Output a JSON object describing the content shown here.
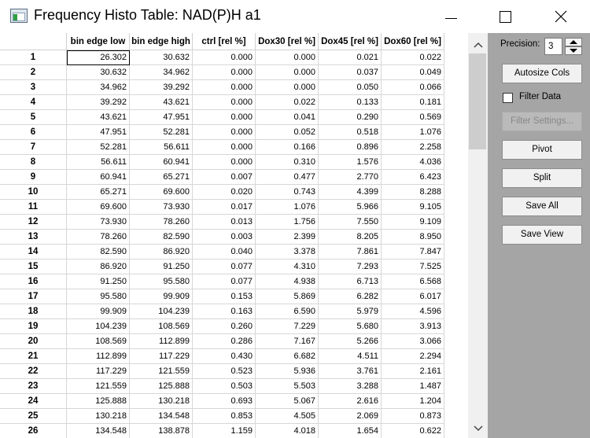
{
  "window": {
    "title": "Frequency Histo Table: NAD(P)H a1"
  },
  "table": {
    "columns": [
      "bin edge low",
      "bin edge high",
      "ctrl [rel %]",
      "Dox30 [rel %]",
      "Dox45 [rel %]",
      "Dox60 [rel %]"
    ],
    "rows": [
      {
        "id": "1",
        "cells": [
          "26.302",
          "30.632",
          "0.000",
          "0.000",
          "0.021",
          "0.022"
        ]
      },
      {
        "id": "2",
        "cells": [
          "30.632",
          "34.962",
          "0.000",
          "0.000",
          "0.037",
          "0.049"
        ]
      },
      {
        "id": "3",
        "cells": [
          "34.962",
          "39.292",
          "0.000",
          "0.000",
          "0.050",
          "0.066"
        ]
      },
      {
        "id": "4",
        "cells": [
          "39.292",
          "43.621",
          "0.000",
          "0.022",
          "0.133",
          "0.181"
        ]
      },
      {
        "id": "5",
        "cells": [
          "43.621",
          "47.951",
          "0.000",
          "0.041",
          "0.290",
          "0.569"
        ]
      },
      {
        "id": "6",
        "cells": [
          "47.951",
          "52.281",
          "0.000",
          "0.052",
          "0.518",
          "1.076"
        ]
      },
      {
        "id": "7",
        "cells": [
          "52.281",
          "56.611",
          "0.000",
          "0.166",
          "0.896",
          "2.258"
        ]
      },
      {
        "id": "8",
        "cells": [
          "56.611",
          "60.941",
          "0.000",
          "0.310",
          "1.576",
          "4.036"
        ]
      },
      {
        "id": "9",
        "cells": [
          "60.941",
          "65.271",
          "0.007",
          "0.477",
          "2.770",
          "6.423"
        ]
      },
      {
        "id": "10",
        "cells": [
          "65.271",
          "69.600",
          "0.020",
          "0.743",
          "4.399",
          "8.288"
        ]
      },
      {
        "id": "11",
        "cells": [
          "69.600",
          "73.930",
          "0.017",
          "1.076",
          "5.966",
          "9.105"
        ]
      },
      {
        "id": "12",
        "cells": [
          "73.930",
          "78.260",
          "0.013",
          "1.756",
          "7.550",
          "9.109"
        ]
      },
      {
        "id": "13",
        "cells": [
          "78.260",
          "82.590",
          "0.003",
          "2.399",
          "8.205",
          "8.950"
        ]
      },
      {
        "id": "14",
        "cells": [
          "82.590",
          "86.920",
          "0.040",
          "3.378",
          "7.861",
          "7.847"
        ]
      },
      {
        "id": "15",
        "cells": [
          "86.920",
          "91.250",
          "0.077",
          "4.310",
          "7.293",
          "7.525"
        ]
      },
      {
        "id": "16",
        "cells": [
          "91.250",
          "95.580",
          "0.077",
          "4.938",
          "6.713",
          "6.568"
        ]
      },
      {
        "id": "17",
        "cells": [
          "95.580",
          "99.909",
          "0.153",
          "5.869",
          "6.282",
          "6.017"
        ]
      },
      {
        "id": "18",
        "cells": [
          "99.909",
          "104.239",
          "0.163",
          "6.590",
          "5.979",
          "4.596"
        ]
      },
      {
        "id": "19",
        "cells": [
          "104.239",
          "108.569",
          "0.260",
          "7.229",
          "5.680",
          "3.913"
        ]
      },
      {
        "id": "20",
        "cells": [
          "108.569",
          "112.899",
          "0.286",
          "7.167",
          "5.266",
          "3.066"
        ]
      },
      {
        "id": "21",
        "cells": [
          "112.899",
          "117.229",
          "0.430",
          "6.682",
          "4.511",
          "2.294"
        ]
      },
      {
        "id": "22",
        "cells": [
          "117.229",
          "121.559",
          "0.523",
          "5.936",
          "3.761",
          "2.161"
        ]
      },
      {
        "id": "23",
        "cells": [
          "121.559",
          "125.888",
          "0.503",
          "5.503",
          "3.288",
          "1.487"
        ]
      },
      {
        "id": "24",
        "cells": [
          "125.888",
          "130.218",
          "0.693",
          "5.067",
          "2.616",
          "1.204"
        ]
      },
      {
        "id": "25",
        "cells": [
          "130.218",
          "134.548",
          "0.853",
          "4.505",
          "2.069",
          "0.873"
        ]
      },
      {
        "id": "26",
        "cells": [
          "134.548",
          "138.878",
          "1.159",
          "4.018",
          "1.654",
          "0.622"
        ]
      }
    ]
  },
  "panel": {
    "precision_label": "Precision:",
    "precision_value": "3",
    "autosize_label": "Autosize Cols",
    "filter_label": "Filter Data",
    "filter_checked": false,
    "filter_settings_label": "Filter Settings...",
    "pivot_label": "Pivot",
    "split_label": "Split",
    "save_all_label": "Save All",
    "save_view_label": "Save View"
  },
  "icons": {
    "app": "histogram-table-icon",
    "minimize": "minimize-icon",
    "maximize": "maximize-icon",
    "close": "close-icon"
  },
  "colors": {
    "panel_bg": "#a5a5a5",
    "scrollbar_thumb": "#cdcdcd"
  }
}
